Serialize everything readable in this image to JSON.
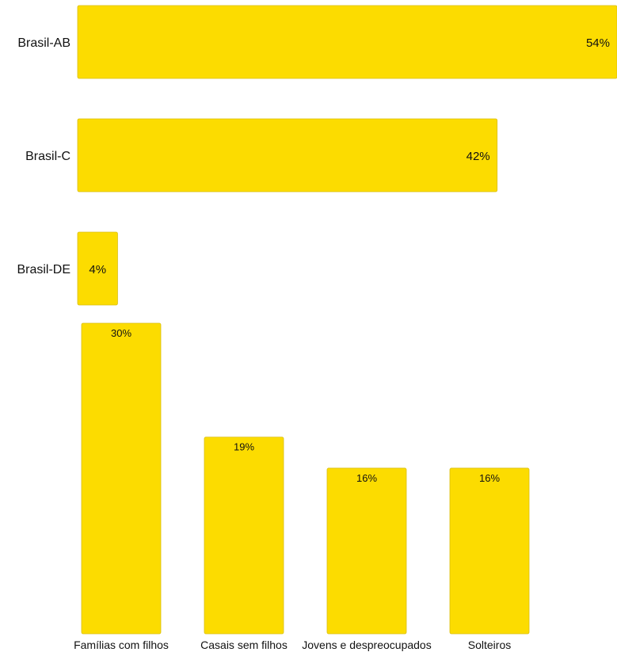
{
  "colors": {
    "bar_fill": "#FCDC00",
    "bar_stroke": "#D9BE10",
    "text": "#111111",
    "background": "#FFFFFF"
  },
  "chart_data": [
    {
      "type": "bar",
      "orientation": "horizontal",
      "title": "",
      "xlabel": "",
      "ylabel": "",
      "categories": [
        "Brasil-AB",
        "Brasil-C",
        "Brasil-DE"
      ],
      "values": [
        54,
        42,
        4
      ],
      "value_labels": [
        "54%",
        "42%",
        "4%"
      ],
      "unit": "%",
      "xlim": [
        0,
        54
      ],
      "grid": false,
      "legend": "none"
    },
    {
      "type": "bar",
      "orientation": "vertical",
      "title": "",
      "xlabel": "",
      "ylabel": "",
      "categories": [
        "Famílias com filhos",
        "Casais sem filhos",
        "Jovens e despreocupados",
        "Solteiros"
      ],
      "values": [
        30,
        19,
        16,
        16
      ],
      "value_labels": [
        "30%",
        "19%",
        "16%",
        "16%"
      ],
      "unit": "%",
      "ylim": [
        0,
        30
      ],
      "grid": false,
      "legend": "none"
    }
  ]
}
